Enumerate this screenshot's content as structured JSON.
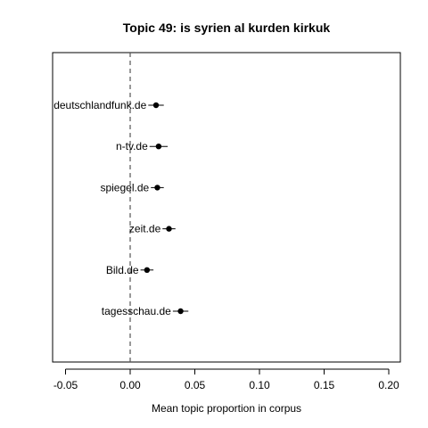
{
  "chart_data": {
    "type": "scatter",
    "title": "Topic 49: is syrien al kurden kirkuk",
    "xlabel": "Mean topic proportion in corpus",
    "ylabel": "",
    "xlim": [
      -0.06,
      0.21
    ],
    "xticks": [
      -0.05,
      0.0,
      0.05,
      0.1,
      0.15,
      0.2
    ],
    "xtick_labels": [
      "-0.05",
      "0.00",
      "0.05",
      "0.10",
      "0.15",
      "0.20"
    ],
    "reference_line_x": 0,
    "grid": false,
    "legend": "none",
    "points": [
      {
        "label": "deutschlandfunk.de",
        "estimate": 0.02,
        "lower": 0.014,
        "upper": 0.026
      },
      {
        "label": "n-tv.de",
        "estimate": 0.022,
        "lower": 0.015,
        "upper": 0.029
      },
      {
        "label": "spiegel.de",
        "estimate": 0.021,
        "lower": 0.016,
        "upper": 0.026
      },
      {
        "label": "zeit.de",
        "estimate": 0.03,
        "lower": 0.025,
        "upper": 0.035
      },
      {
        "label": "Bild.de",
        "estimate": 0.013,
        "lower": 0.008,
        "upper": 0.018
      },
      {
        "label": "tagesschau.de",
        "estimate": 0.039,
        "lower": 0.033,
        "upper": 0.045
      }
    ]
  }
}
